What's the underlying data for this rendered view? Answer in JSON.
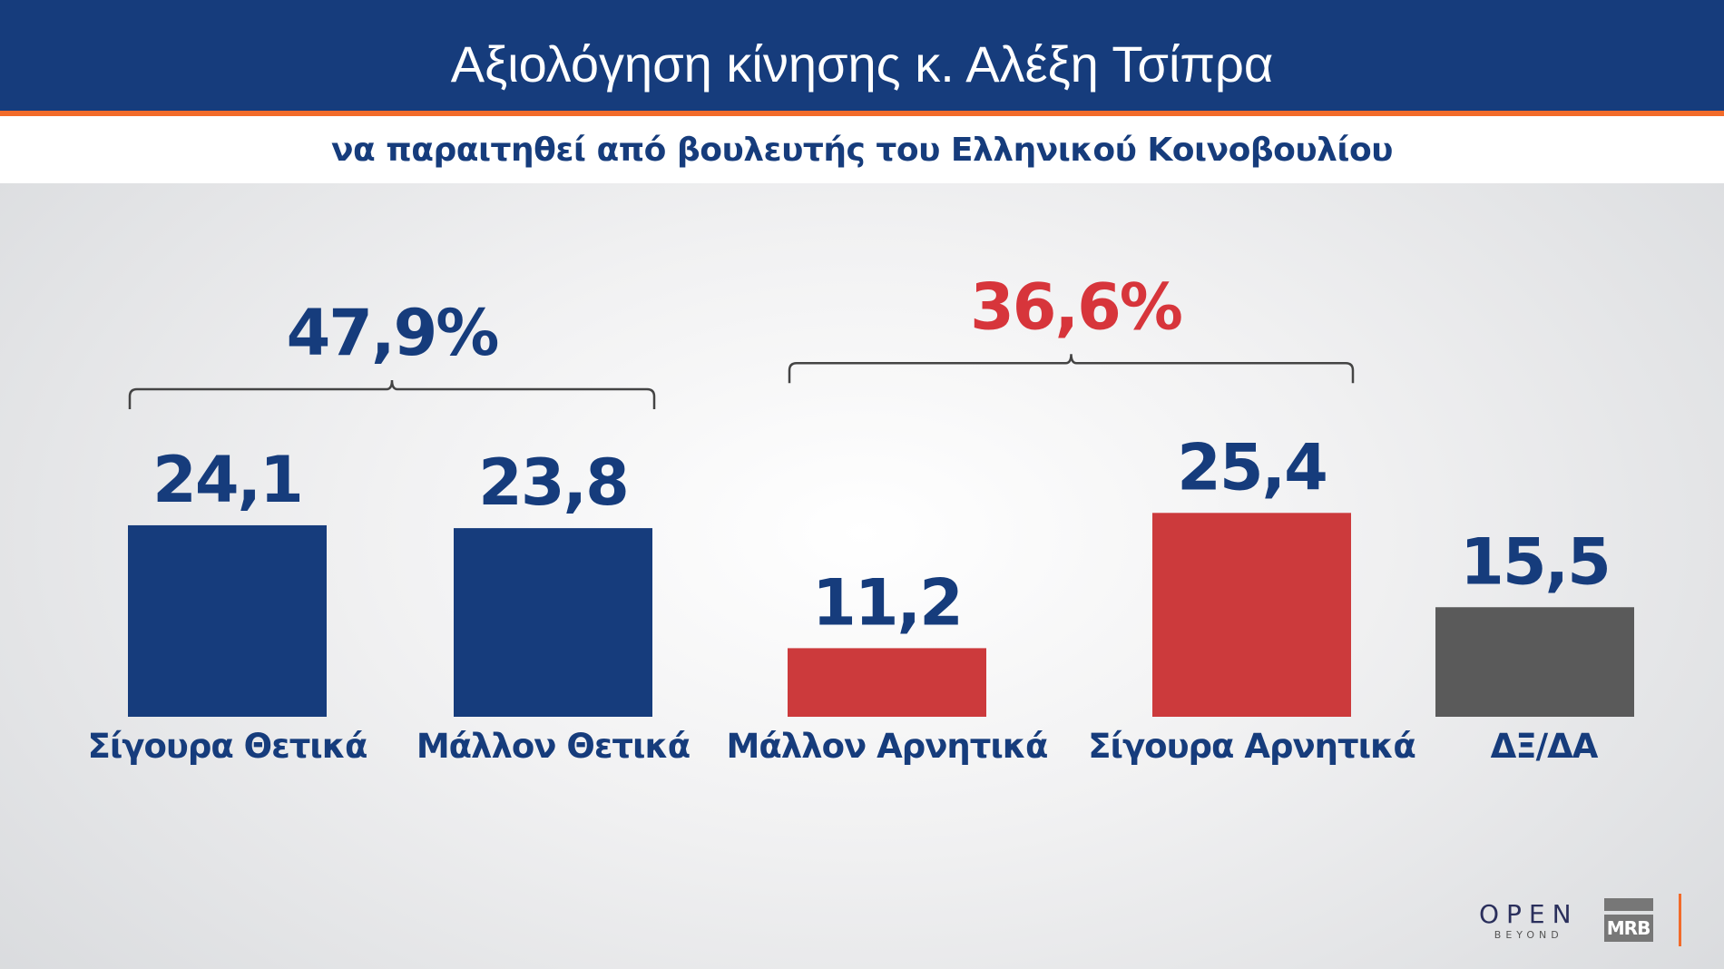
{
  "header": {
    "title": "Αξιολόγηση κίνησης κ. Αλέξη Τσίπρα",
    "subtitle": "να παραιτηθεί από βουλευτής του Ελληνικού Κοινοβουλίου"
  },
  "chart_data": {
    "type": "bar",
    "title": "Αξιολόγηση κίνησης κ. Αλέξη Τσίπρα",
    "subtitle": "να παραιτηθεί από βουλευτής του Ελληνικού Κοινοβουλίου",
    "categories": [
      "Σίγουρα Θετικά",
      "Μάλλον Θετικά",
      "Μάλλον Αρνητικά",
      "Σίγουρα Αρνητικά",
      "ΔΞ/ΔΑ"
    ],
    "values": [
      24.1,
      23.8,
      11.2,
      25.4,
      15.5
    ],
    "value_labels": [
      "24,1",
      "23,8",
      "11,2",
      "25,4",
      "15,5"
    ],
    "colors": [
      "#163c7c",
      "#163c7c",
      "#cc3a3c",
      "#cc3a3c",
      "#5a5a5a"
    ],
    "groups": [
      {
        "label": "47,9%",
        "categories": [
          0,
          1
        ],
        "color": "#163c7c"
      },
      {
        "label": "36,6%",
        "categories": [
          2,
          3
        ],
        "color": "#d7353b"
      }
    ],
    "grid": false
  },
  "logos": {
    "open": "OPEN",
    "open_sub": "BEYOND",
    "mrb": "MRB"
  }
}
